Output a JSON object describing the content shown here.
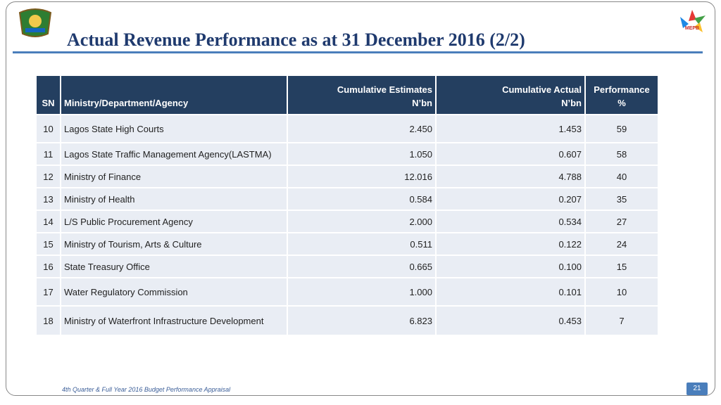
{
  "header": {
    "title": "Actual Revenue Performance as at 31 December 2016 (2/2)"
  },
  "table": {
    "columns": [
      {
        "lines": [
          "SN"
        ]
      },
      {
        "lines": [
          "Ministry/Department/Agency"
        ]
      },
      {
        "lines": [
          "Cumulative Estimates",
          "N’bn"
        ]
      },
      {
        "lines": [
          "Cumulative Actual",
          "N’bn"
        ]
      },
      {
        "lines": [
          "Performance",
          "%"
        ]
      }
    ],
    "rows": [
      [
        "10",
        "Lagos State High Courts",
        "2.450",
        "1.453",
        "59"
      ],
      [
        "11",
        "Lagos State Traffic Management Agency(LASTMA)",
        "1.050",
        "0.607",
        "58"
      ],
      [
        "12",
        "Ministry of Finance",
        "12.016",
        "4.788",
        "40"
      ],
      [
        "13",
        "Ministry of Health",
        "0.584",
        "0.207",
        "35"
      ],
      [
        "14",
        "L/S Public Procurement Agency",
        "2.000",
        "0.534",
        "27"
      ],
      [
        "15",
        "Ministry of Tourism, Arts & Culture",
        "0.511",
        "0.122",
        "24"
      ],
      [
        "16",
        "State Treasury Office",
        "0.665",
        "0.100",
        "15"
      ],
      [
        "17",
        "Water Regulatory Commission",
        "1.000",
        "0.101",
        "10"
      ],
      [
        "18",
        "Ministry of Waterfront Infrastructure Development",
        "6.823",
        "0.453",
        "7"
      ]
    ]
  },
  "footer": {
    "text": "4th Quarter & Full Year 2016 Budget Performance Appraisal",
    "page": "21"
  }
}
